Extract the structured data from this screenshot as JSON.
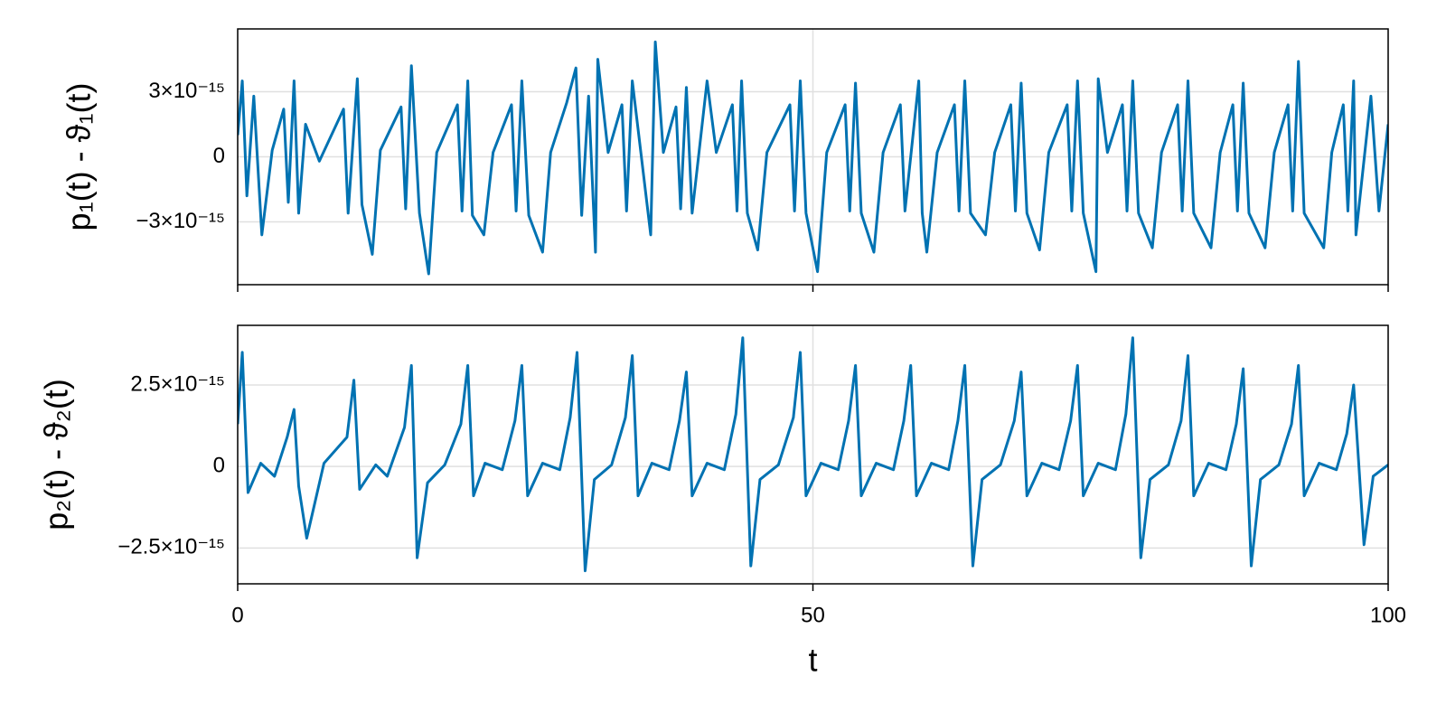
{
  "chart_data": [
    {
      "type": "line",
      "ylabel": "p₁(t) - ϑ₁(t)",
      "x": [
        0,
        0.4,
        0.8,
        1.4,
        2.1,
        3.0,
        4.0,
        4.4,
        4.9,
        5.3,
        5.9,
        7.1,
        9.2,
        9.6,
        10.4,
        10.8,
        11.7,
        12.4,
        14.2,
        14.6,
        15.1,
        15.8,
        16.6,
        17.3,
        19.1,
        19.5,
        20,
        20.4,
        21.4,
        22.2,
        23.8,
        24.2,
        24.7,
        25.3,
        26.5,
        27.2,
        28.6,
        29.4,
        29.9,
        30.5,
        31.1,
        31.3,
        32.2,
        33.4,
        33.8,
        34.3,
        35.9,
        36.3,
        37,
        38.1,
        38.5,
        39,
        39.5,
        40.8,
        41.6,
        43,
        43.4,
        43.8,
        44.3,
        45.2,
        46,
        48,
        48.4,
        48.9,
        49.4,
        50.4,
        51.2,
        52.8,
        53.2,
        53.7,
        54.2,
        55.3,
        56.1,
        57.6,
        58,
        59.2,
        59.5,
        59.9,
        60.8,
        62.3,
        62.7,
        63.2,
        63.7,
        65,
        65.8,
        67.2,
        67.6,
        68.1,
        68.6,
        69.7,
        70.5,
        72.1,
        72.5,
        73,
        73.5,
        74.6,
        74.8,
        75.6,
        76.9,
        77.3,
        77.8,
        78.3,
        79.5,
        80.3,
        81.7,
        82.1,
        82.6,
        83.1,
        84.6,
        85.4,
        86.5,
        86.9,
        87.4,
        87.9,
        89.3,
        90.1,
        91.3,
        91.7,
        92.2,
        92.7,
        94.4,
        95.1,
        96.1,
        96.5,
        97,
        97.2,
        98.5,
        99.2,
        100
      ],
      "series": [
        {
          "color": "#0072b2",
          "values": [
            1e-15,
            3.5e-15,
            -1.8e-15,
            2.8e-15,
            -3.6e-15,
            3e-16,
            2.2e-15,
            -2.1e-15,
            3.5e-15,
            -2.6e-15,
            1.5e-15,
            -2e-16,
            2.2e-15,
            -2.6e-15,
            3.6e-15,
            -2.2e-15,
            -4.5e-15,
            3e-16,
            2.3e-15,
            -2.4e-15,
            4.2e-15,
            -2.6e-15,
            -5.4e-15,
            2e-16,
            2.4e-15,
            -2.5e-15,
            3.5e-15,
            -2.7e-15,
            -3.6e-15,
            2e-16,
            2.4e-15,
            -2.5e-15,
            3.5e-15,
            -2.7e-15,
            -4.4e-15,
            2e-16,
            2.5e-15,
            4.1e-15,
            -2.7e-15,
            2.8e-15,
            -4.4e-15,
            4.5e-15,
            2e-16,
            2.4e-15,
            -2.5e-15,
            3.5e-15,
            -3.6e-15,
            5.3e-15,
            2e-16,
            2.3e-15,
            -2.4e-15,
            3.2e-15,
            -2.6e-15,
            3.5e-15,
            2e-16,
            2.4e-15,
            -2.5e-15,
            3.5e-15,
            -2.6e-15,
            -4.3e-15,
            2e-16,
            2.4e-15,
            -2.5e-15,
            3.5e-15,
            -2.6e-15,
            -5.3e-15,
            2e-16,
            2.4e-15,
            -2.5e-15,
            3.4e-15,
            -2.6e-15,
            -4.4e-15,
            2e-16,
            2.4e-15,
            -2.5e-15,
            3.5e-15,
            -2.6e-15,
            -4.4e-15,
            2e-16,
            2.4e-15,
            -2.5e-15,
            3.5e-15,
            -2.6e-15,
            -3.6e-15,
            2e-16,
            2.4e-15,
            -2.5e-15,
            3.4e-15,
            -2.6e-15,
            -4.3e-15,
            2e-16,
            2.4e-15,
            -2.5e-15,
            3.5e-15,
            -2.6e-15,
            -5.3e-15,
            3.6e-15,
            2e-16,
            2.4e-15,
            -2.5e-15,
            3.5e-15,
            -2.6e-15,
            -4.2e-15,
            2e-16,
            2.4e-15,
            -2.5e-15,
            3.5e-15,
            -2.6e-15,
            -4.2e-15,
            2e-16,
            2.4e-15,
            -2.5e-15,
            3.4e-15,
            -2.6e-15,
            -4.2e-15,
            2e-16,
            2.4e-15,
            -2.5e-15,
            4.4e-15,
            -2.6e-15,
            -4.2e-15,
            2e-16,
            2.4e-15,
            -2.5e-15,
            3.5e-15,
            -3.6e-15,
            2.8e-15,
            -2.5e-15,
            1.5e-15
          ]
        }
      ],
      "xlim": [
        0,
        100
      ],
      "xticks": [
        0,
        50,
        100
      ],
      "ylim": [
        -5.9e-15,
        5.9e-15
      ],
      "yticks": [
        {
          "value": -3e-15,
          "label": "−3×10⁻¹⁵"
        },
        0,
        {
          "value": 3e-15,
          "label": "3×10⁻¹⁵"
        }
      ],
      "grid": true
    },
    {
      "type": "line",
      "ylabel": "p₂(t) - ϑ₂(t)",
      "xlabel": "t",
      "x": [
        0,
        0.4,
        0.9,
        2,
        3.2,
        4.3,
        4.9,
        5.3,
        6.0,
        7.5,
        9.5,
        10.1,
        10.6,
        12,
        13,
        14.5,
        15.1,
        15.6,
        16.5,
        18,
        19.4,
        20,
        20.5,
        21.5,
        23,
        24.1,
        24.7,
        25.2,
        26.5,
        28,
        28.9,
        29.5,
        30.2,
        31,
        32.5,
        33.7,
        34.3,
        34.8,
        36,
        37.5,
        38.4,
        39,
        39.5,
        40.8,
        42.3,
        43.3,
        43.9,
        44.6,
        45.4,
        47,
        48.3,
        48.9,
        49.4,
        50.7,
        52.2,
        53.1,
        53.7,
        54.2,
        55.5,
        57,
        57.9,
        58.5,
        59,
        60.3,
        61.8,
        62.6,
        63.2,
        63.9,
        64.7,
        66.3,
        67.5,
        68.1,
        68.6,
        69.9,
        71.4,
        72.4,
        73,
        73.5,
        74.8,
        76.3,
        77.2,
        77.8,
        78.5,
        79.3,
        80.9,
        82,
        82.6,
        83.1,
        84.4,
        85.9,
        86.8,
        87.4,
        88.1,
        88.9,
        90.5,
        91.6,
        92.2,
        92.7,
        94,
        95.5,
        96.4,
        97,
        97.9,
        98.7,
        100
      ],
      "series": [
        {
          "color": "#0072b2",
          "values": [
            1.3e-15,
            3.5e-15,
            -8e-16,
            1e-16,
            -3e-16,
            9e-16,
            1.75e-15,
            -6e-16,
            -2.2e-15,
            1e-16,
            9e-16,
            2.65e-15,
            -7e-16,
            5e-17,
            -3e-16,
            1.2e-15,
            3.1e-15,
            -2.8e-15,
            -5e-16,
            5e-17,
            1.3e-15,
            3.1e-15,
            -9e-16,
            1e-16,
            -1e-16,
            1.4e-15,
            3.1e-15,
            -9e-16,
            1e-16,
            -1e-16,
            1.5e-15,
            3.5e-15,
            -3.2e-15,
            -4e-16,
            5e-17,
            1.5e-15,
            3.4e-15,
            -9e-16,
            1e-16,
            -1e-16,
            1.4e-15,
            2.9e-15,
            -9e-16,
            1e-16,
            -1e-16,
            1.6e-15,
            3.95e-15,
            -3.05e-15,
            -4e-16,
            5e-17,
            1.5e-15,
            3.5e-15,
            -9e-16,
            1e-16,
            -1e-16,
            1.4e-15,
            3.1e-15,
            -9e-16,
            1e-16,
            -1e-16,
            1.4e-15,
            3.1e-15,
            -9e-16,
            1e-16,
            -1e-16,
            1.4e-15,
            3.1e-15,
            -3.05e-15,
            -4e-16,
            5e-17,
            1.4e-15,
            2.9e-15,
            -9e-16,
            1e-16,
            -1e-16,
            1.4e-15,
            3.1e-15,
            -9e-16,
            1e-16,
            -1e-16,
            1.6e-15,
            3.95e-15,
            -2.8e-15,
            -4e-16,
            5e-17,
            1.4e-15,
            3.4e-15,
            -9e-16,
            1e-16,
            -1e-16,
            1.3e-15,
            3e-15,
            -3.05e-15,
            -4e-16,
            5e-17,
            1.3e-15,
            3.1e-15,
            -9e-16,
            1e-16,
            -1e-16,
            1e-15,
            2.5e-15,
            -2.4e-15,
            -3e-16,
            5e-17
          ]
        }
      ],
      "xlim": [
        0,
        100
      ],
      "xticks": [
        0,
        50,
        100
      ],
      "ylim": [
        -3.6e-15,
        4.33e-15
      ],
      "yticks": [
        {
          "value": -2.5e-15,
          "label": "−2.5×10⁻¹⁵"
        },
        0,
        {
          "value": 2.5e-15,
          "label": "2.5×10⁻¹⁵"
        }
      ],
      "grid": true
    }
  ]
}
